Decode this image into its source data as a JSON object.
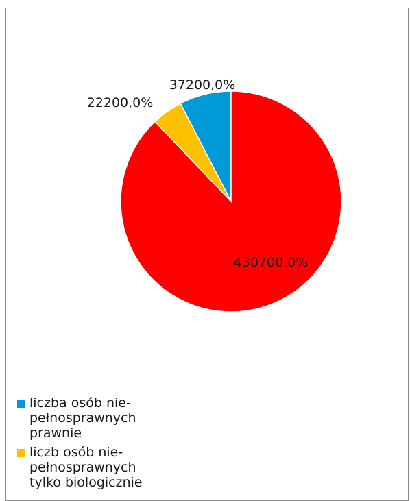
{
  "chart_data": {
    "type": "pie",
    "slices": [
      {
        "name": "liczba osób nie-pełnosprawnych prawnie",
        "value": 37200,
        "label": "37200,0%",
        "color": "#0099d9"
      },
      {
        "name": "liczb osób nie-pełnosprawnych tylko biologicznie",
        "value": 22200,
        "label": "22200,0%",
        "color": "#ffc000"
      },
      {
        "name": "",
        "value": 430700,
        "label": "430700,0%",
        "color": "#ff0000"
      }
    ],
    "start_angle_deg": 0,
    "direction": "clockwise",
    "legend_position": "bottom-left"
  },
  "legend": {
    "items": [
      {
        "text": "liczba osób nie-pełnosprawnych prawnie",
        "color": "#0099d9"
      },
      {
        "text": "liczb osób nie-pełnosprawnych tylko biologicznie",
        "color": "#ffc000"
      }
    ]
  }
}
